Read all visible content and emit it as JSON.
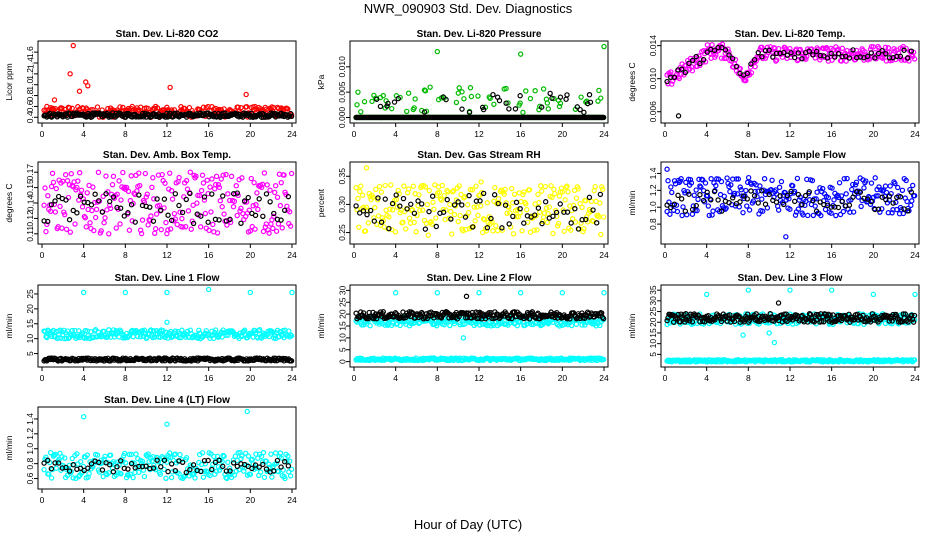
{
  "page": {
    "title": "NWR_090903  Std. Dev. Diagnostics",
    "xlabel": "Hour of Day (UTC)"
  },
  "chart_data": [
    {
      "type": "scatter",
      "title": "Stan. Dev. Li-820 CO2",
      "ylabel": "Licor ppm",
      "xlim": [
        0,
        24
      ],
      "ylim": [
        0.35,
        1.75
      ],
      "xticks": [
        0,
        4,
        8,
        12,
        16,
        20,
        24
      ],
      "yticks": [
        0.4,
        0.6,
        0.8,
        1.0,
        1.2,
        1.4,
        1.6
      ],
      "ytick_labels": [
        "0.4",
        "0.6",
        "0.8",
        "1.0",
        "1.2",
        "1.4",
        "1.6"
      ],
      "series": [
        {
          "color": "#ff0000",
          "bands": [
            [
              0.4,
              0.6
            ]
          ],
          "extras": [
            [
              3,
              1.72
            ],
            [
              2.7,
              1.2
            ],
            [
              4.2,
              1.05
            ],
            [
              4.4,
              0.98
            ],
            [
              3.6,
              0.88
            ],
            [
              12.3,
              0.95
            ],
            [
              19.6,
              0.82
            ],
            [
              1.2,
              0.72
            ]
          ]
        },
        {
          "color": "#000000",
          "bands": [
            [
              0.4,
              0.48
            ]
          ]
        }
      ]
    },
    {
      "type": "scatter",
      "title": "Stan. Dev. Li-820 Pressure",
      "ylabel": "kPa",
      "xlim": [
        0,
        24
      ],
      "ylim": [
        -0.0005,
        0.0145
      ],
      "xticks": [
        0,
        4,
        8,
        12,
        16,
        20,
        24
      ],
      "yticks": [
        0,
        0.005,
        0.01
      ],
      "ytick_labels": [
        "0.000",
        "0.005",
        "0.010"
      ],
      "series": [
        {
          "color": "#00bb00",
          "bands": [
            [
              0.0,
              0.0
            ]
          ],
          "extras": [
            [
              8,
              0.013
            ],
            [
              16,
              0.0125
            ],
            [
              24,
              0.014
            ]
          ],
          "scatter": [
            [
              0.001,
              0.006
            ],
            [
              0.26
            ]
          ]
        },
        {
          "color": "#000000",
          "bands": [
            [
              0.0,
              0.0
            ]
          ],
          "scatter": [
            [
              0.001,
              0.005
            ],
            [
              0.12
            ]
          ]
        }
      ]
    },
    {
      "type": "scatter",
      "title": "Stan. Dev. Li-820 Temp.",
      "ylabel": "degrees C",
      "xlim": [
        0,
        24
      ],
      "ylim": [
        0.005,
        0.0142
      ],
      "xticks": [
        0,
        4,
        8,
        12,
        16,
        20,
        24
      ],
      "yticks": [
        0.006,
        0.01,
        0.014
      ],
      "ytick_labels": [
        "0.006",
        "0.010",
        "0.014"
      ],
      "series": [
        {
          "color": "#ff00ff",
          "curve": "temp",
          "spread": 0.0009
        },
        {
          "color": "#000000",
          "curve": "temp",
          "spread": 0.0006,
          "sparse": true,
          "extras": [
            [
              1.3,
              0.0055
            ]
          ]
        }
      ]
    },
    {
      "type": "scatter",
      "title": "Stan. Dev. Amb. Box Temp.",
      "ylabel": "degrees C",
      "xlim": [
        0,
        24
      ],
      "ylim": [
        0.103,
        0.177
      ],
      "xticks": [
        0,
        4,
        8,
        12,
        16,
        20,
        24
      ],
      "yticks": [
        0.11,
        0.125,
        0.14,
        0.155,
        0.17
      ],
      "ytick_labels": [
        "0.11",
        "0.12",
        "0.14",
        "0.15",
        "0.17"
      ],
      "series": [
        {
          "color": "#ff00ff",
          "bands": [
            [
              0.11,
              0.17
            ]
          ]
        },
        {
          "color": "#000000",
          "bands": [
            [
              0.12,
              0.15
            ]
          ],
          "sparse": true
        }
      ]
    },
    {
      "type": "scatter",
      "title": "Stan. Dev. Gas Stream RH",
      "ylabel": "percent",
      "xlim": [
        0,
        24
      ],
      "ylim": [
        0.235,
        0.37
      ],
      "xticks": [
        0,
        4,
        8,
        12,
        16,
        20,
        24
      ],
      "yticks": [
        0.25,
        0.3,
        0.35
      ],
      "ytick_labels": [
        "0.25",
        "0.30",
        "0.35"
      ],
      "series": [
        {
          "color": "#ffff00",
          "bands": [
            [
              0.245,
              0.335
            ]
          ],
          "extras": [
            [
              1.2,
              0.365
            ],
            [
              12.2,
              0.34
            ]
          ]
        },
        {
          "color": "#000000",
          "bands": [
            [
              0.255,
              0.32
            ]
          ],
          "sparse": true
        }
      ]
    },
    {
      "type": "scatter",
      "title": "Stan. Dev. Sample Flow",
      "ylabel": "ml/min",
      "xlim": [
        0,
        24
      ],
      "ylim": [
        0.6,
        1.5
      ],
      "xticks": [
        0,
        4,
        8,
        12,
        16,
        20,
        24
      ],
      "yticks": [
        0.8,
        1.0,
        1.2,
        1.4
      ],
      "ytick_labels": [
        "0.8",
        "1.0",
        "1.2",
        "1.4"
      ],
      "series": [
        {
          "color": "#0000ff",
          "bands": [
            [
              0.9,
              1.35
            ]
          ],
          "extras": [
            [
              0.2,
              1.45
            ],
            [
              11.6,
              0.65
            ]
          ]
        },
        {
          "color": "#000000",
          "bands": [
            [
              0.95,
              1.2
            ]
          ],
          "sparse": true
        }
      ]
    },
    {
      "type": "scatter",
      "title": "Stan. Dev. Line 1 Flow",
      "ylabel": "ml/min",
      "xlim": [
        0,
        24
      ],
      "ylim": [
        1.5,
        27
      ],
      "xticks": [
        0,
        4,
        8,
        12,
        16,
        20,
        24
      ],
      "yticks": [
        5,
        10,
        15,
        20,
        25
      ],
      "ytick_labels": [
        "5",
        "10",
        "15",
        "20",
        "25"
      ],
      "series": [
        {
          "color": "#00ffff",
          "bands": [
            [
              10,
              13
            ]
          ],
          "extras": [
            [
              4,
              25.5
            ],
            [
              8,
              25.5
            ],
            [
              12,
              25.5
            ],
            [
              16,
              26.5
            ],
            [
              20,
              25.5
            ],
            [
              24,
              25.5
            ],
            [
              12,
              15.5
            ]
          ]
        },
        {
          "color": "#000000",
          "bands": [
            [
              2.5,
              3.5
            ]
          ]
        }
      ]
    },
    {
      "type": "scatter",
      "title": "Stan. Dev. Line 2 Flow",
      "ylabel": "ml/min",
      "xlim": [
        0,
        24
      ],
      "ylim": [
        -1,
        31
      ],
      "xticks": [
        0,
        4,
        8,
        12,
        16,
        20,
        24
      ],
      "yticks": [
        0,
        5,
        10,
        15,
        20,
        25,
        30
      ],
      "ytick_labels": [
        "0",
        "5",
        "10",
        "15",
        "20",
        "25",
        "30"
      ],
      "series": [
        {
          "color": "#00ffff",
          "bands": [
            [
              15,
              19
            ],
            [
              0.5,
              1.5
            ]
          ],
          "extras": [
            [
              4,
              29
            ],
            [
              8,
              29
            ],
            [
              12,
              29
            ],
            [
              16,
              29
            ],
            [
              20,
              29
            ],
            [
              24,
              29
            ],
            [
              10.5,
              10
            ]
          ]
        },
        {
          "color": "#000000",
          "bands": [
            [
              18,
              21
            ]
          ],
          "extras": [
            [
              10.8,
              27.5
            ]
          ]
        }
      ]
    },
    {
      "type": "scatter",
      "title": "Stan. Dev. Line 3 Flow",
      "ylabel": "ml/min",
      "xlim": [
        0,
        24
      ],
      "ylim": [
        0.5,
        36
      ],
      "xticks": [
        0,
        4,
        8,
        12,
        16,
        20,
        24
      ],
      "yticks": [
        5,
        10,
        15,
        20,
        25,
        30,
        35
      ],
      "ytick_labels": [
        "5",
        "10",
        "15",
        "20",
        "25",
        "30",
        "35"
      ],
      "series": [
        {
          "color": "#00ffff",
          "bands": [
            [
              19,
              24
            ],
            [
              1.5,
              2.5
            ]
          ],
          "extras": [
            [
              4,
              33
            ],
            [
              8,
              35
            ],
            [
              12,
              35
            ],
            [
              16,
              35
            ],
            [
              20,
              33
            ],
            [
              24,
              33
            ],
            [
              10.5,
              10.5
            ],
            [
              7.5,
              14
            ],
            [
              10,
              15
            ]
          ]
        },
        {
          "color": "#000000",
          "bands": [
            [
              20,
              24
            ]
          ],
          "extras": [
            [
              10.9,
              29
            ]
          ]
        }
      ]
    },
    {
      "type": "scatter",
      "title": "Stan. Dev. Line 4 (LT) Flow",
      "ylabel": "ml/min",
      "xlim": [
        0,
        24
      ],
      "ylim": [
        0.5,
        1.52
      ],
      "xticks": [
        0,
        4,
        8,
        12,
        16,
        20,
        24
      ],
      "yticks": [
        0.6,
        0.8,
        1.0,
        1.2,
        1.4
      ],
      "ytick_labels": [
        "0.6",
        "0.8",
        "1.0",
        "1.2",
        "1.4"
      ],
      "series": [
        {
          "color": "#00ffff",
          "bands": [
            [
              0.6,
              0.95
            ]
          ],
          "extras": [
            [
              4,
              1.43
            ],
            [
              12,
              1.33
            ],
            [
              19.7,
              1.5
            ]
          ]
        },
        {
          "color": "#000000",
          "bands": [
            [
              0.68,
              0.85
            ]
          ],
          "sparse": true
        }
      ]
    }
  ]
}
